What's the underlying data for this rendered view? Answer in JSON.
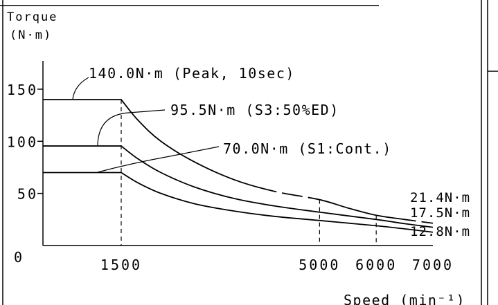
{
  "chart_data": {
    "type": "line",
    "title": "",
    "ylabel": [
      "Torque",
      "(N·m)"
    ],
    "xlabel": "Speed (min⁻¹)",
    "xlim": [
      0,
      7000
    ],
    "ylim": [
      0,
      170
    ],
    "yticks": [
      {
        "value": 0,
        "label": "0"
      },
      {
        "value": 50,
        "label": "50"
      },
      {
        "value": 100,
        "label": "100"
      },
      {
        "value": 150,
        "label": "150"
      }
    ],
    "xticks": [
      {
        "value": 1500,
        "label": "1500"
      },
      {
        "value": 5000,
        "label": "5000"
      },
      {
        "value": 6000,
        "label": "6000"
      },
      {
        "value": 7000,
        "label": "7000"
      }
    ],
    "grid": false,
    "reference_lines_x": [
      1500,
      5000,
      6000
    ],
    "series": [
      {
        "name": "140.0N·m (Peak, 10sec)",
        "end_label": "21.4N·m",
        "points": [
          [
            0,
            140
          ],
          [
            1500,
            140
          ],
          [
            1800,
            120
          ],
          [
            2200,
            100
          ],
          [
            2800,
            80
          ],
          [
            3500,
            63
          ],
          [
            4200,
            52
          ],
          [
            5000,
            44
          ],
          [
            5500,
            36
          ],
          [
            6000,
            29
          ],
          [
            6500,
            25
          ],
          [
            7000,
            21.4
          ]
        ]
      },
      {
        "name": "95.5N·m (S3:50%ED)",
        "end_label": "17.5N·m",
        "points": [
          [
            0,
            95.5
          ],
          [
            1500,
            95.5
          ],
          [
            1800,
            83
          ],
          [
            2200,
            70
          ],
          [
            2800,
            56
          ],
          [
            3500,
            45
          ],
          [
            4200,
            38
          ],
          [
            5000,
            32
          ],
          [
            6000,
            25
          ],
          [
            6500,
            21
          ],
          [
            7000,
            17.5
          ]
        ]
      },
      {
        "name": "70.0N·m (S1:Cont.)",
        "end_label": "12.8N·m",
        "points": [
          [
            0,
            70
          ],
          [
            1500,
            70
          ],
          [
            1800,
            60
          ],
          [
            2200,
            50
          ],
          [
            2800,
            40
          ],
          [
            3500,
            33
          ],
          [
            4200,
            28
          ],
          [
            5000,
            24
          ],
          [
            6000,
            19
          ],
          [
            6500,
            16
          ],
          [
            7000,
            12.8
          ]
        ]
      }
    ]
  }
}
